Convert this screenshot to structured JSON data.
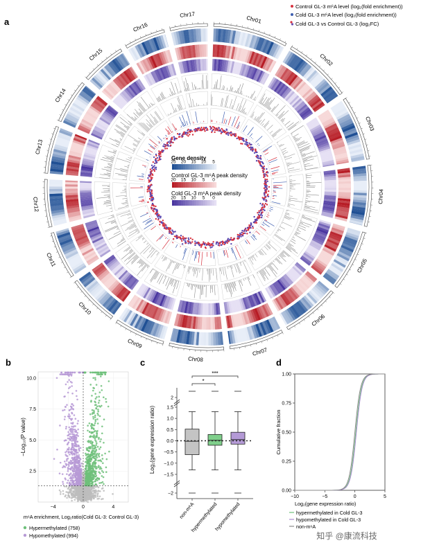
{
  "panels": {
    "a": {
      "letter": "a"
    },
    "b": {
      "letter": "b"
    },
    "c": {
      "letter": "c"
    },
    "d": {
      "letter": "d"
    }
  },
  "legend_a": {
    "items": [
      {
        "label": "Control GL-3 m⁶A level (log₂(fold enrichment))",
        "color": "#d7323f"
      },
      {
        "label": "Cold GL-3 m⁶A level (log₂(fold enrichment))",
        "color": "#3d5eb0"
      },
      {
        "label": "Cold GL-3 vs Control GL-3 (log₂FC)",
        "color": "#d7323f",
        "color2": "#6a4fb0"
      }
    ]
  },
  "center_legend": {
    "gene_density": {
      "title": "Gene density",
      "ticks": [
        "25",
        "20",
        "15",
        "10",
        "5"
      ]
    },
    "control_density": {
      "title": "Control GL-3 m⁶A  peak density",
      "ticks": [
        "20",
        "15",
        "10",
        "5",
        "0"
      ]
    },
    "cold_density": {
      "title": "Cold GL-3 m⁶A  peak density",
      "ticks": [
        "20",
        "15",
        "10",
        "5",
        "0"
      ]
    }
  },
  "colors": {
    "blue": "#2d5ea3",
    "red": "#c8232e",
    "purple": "#5b46a8",
    "gray": "#9a9a9a",
    "green": "#6ec07a",
    "lilac": "#b79ad6"
  },
  "chart_data": [
    {
      "type": "circos",
      "chromosomes": [
        "Chr01",
        "Chr02",
        "Chr03",
        "Chr04",
        "Chr05",
        "Chr06",
        "Chr07",
        "Chr08",
        "Chr09",
        "Chr10",
        "Chr11",
        "Chr12",
        "Chr13",
        "Chr14",
        "Chr15",
        "Chr16",
        "Chr17"
      ],
      "tracks": [
        "ideogram",
        "gene density",
        "Control GL-3 m6A peak density",
        "Cold GL-3 m6A peak density",
        "m6A level",
        "log2FC"
      ]
    },
    {
      "type": "scatter",
      "title": "",
      "xlabel": "m⁶A enrichment, Log₂ratio(Cold GL-3: Control GL-3)",
      "ylabel": "−Log₁₀(P value)",
      "xlim": [
        -6,
        6
      ],
      "ylim": [
        0,
        10.5
      ],
      "x_ticks": [
        "−4",
        "0",
        "4"
      ],
      "y_ticks": [
        "2.5",
        "5.0",
        "7.5",
        "10.0"
      ],
      "threshold_y": 1.3,
      "threshold_x": 0,
      "series": [
        {
          "name": "Hypermethylated (758)",
          "color": "#6ec07a"
        },
        {
          "name": "Hypomethylated (994)",
          "color": "#b79ad6"
        }
      ]
    },
    {
      "type": "box",
      "ylabel": "Log₂(gene expression ratio)",
      "categories": [
        "non-m⁶A",
        "hypermethylated",
        "hypomethylated"
      ],
      "boxes": [
        {
          "name": "non-m⁶A",
          "q1": -0.62,
          "median": -0.02,
          "q3": 0.52,
          "low": -1.3,
          "high": 1.3,
          "outlier_low": -2.7,
          "color": "#c4c4c4"
        },
        {
          "name": "hypermethylated",
          "q1": -0.2,
          "median": 0.02,
          "q3": 0.28,
          "low": -1.3,
          "high": 1.3,
          "outlier_low": -2.6,
          "color": "#7fcf8b"
        },
        {
          "name": "hypomethylated",
          "q1": -0.15,
          "median": 0.05,
          "q3": 0.38,
          "low": -1.3,
          "high": 1.3,
          "outlier_low": -2.6,
          "color": "#b49ad6"
        }
      ],
      "y_ticks": [
        "−2",
        "−1.5",
        "−1.0",
        "−0.5",
        "0.0",
        "0.5",
        "1.0",
        "1.5",
        "2"
      ],
      "significance": [
        "***",
        "*"
      ]
    },
    {
      "type": "line",
      "xlabel": "Log₂(gene expression ratio)",
      "ylabel": "Cumulative fraction",
      "xlim": [
        -10,
        5
      ],
      "ylim": [
        0,
        1
      ],
      "x_ticks": [
        "−10",
        "−5",
        "0",
        "5"
      ],
      "y_ticks": [
        "0.00",
        "0.25",
        "0.50",
        "0.75",
        "1.00"
      ],
      "series": [
        {
          "name": "hypermethylated in Cold GL-3",
          "color": "#6ec07a",
          "shift": 0.15
        },
        {
          "name": "hypomethylated in Cold GL-3",
          "color": "#a98bd0",
          "shift": 0.25
        },
        {
          "name": "non-m⁶A",
          "color": "#8a8a8a",
          "shift": 0.0
        }
      ]
    }
  ],
  "watermark": "知乎 @康流科技"
}
